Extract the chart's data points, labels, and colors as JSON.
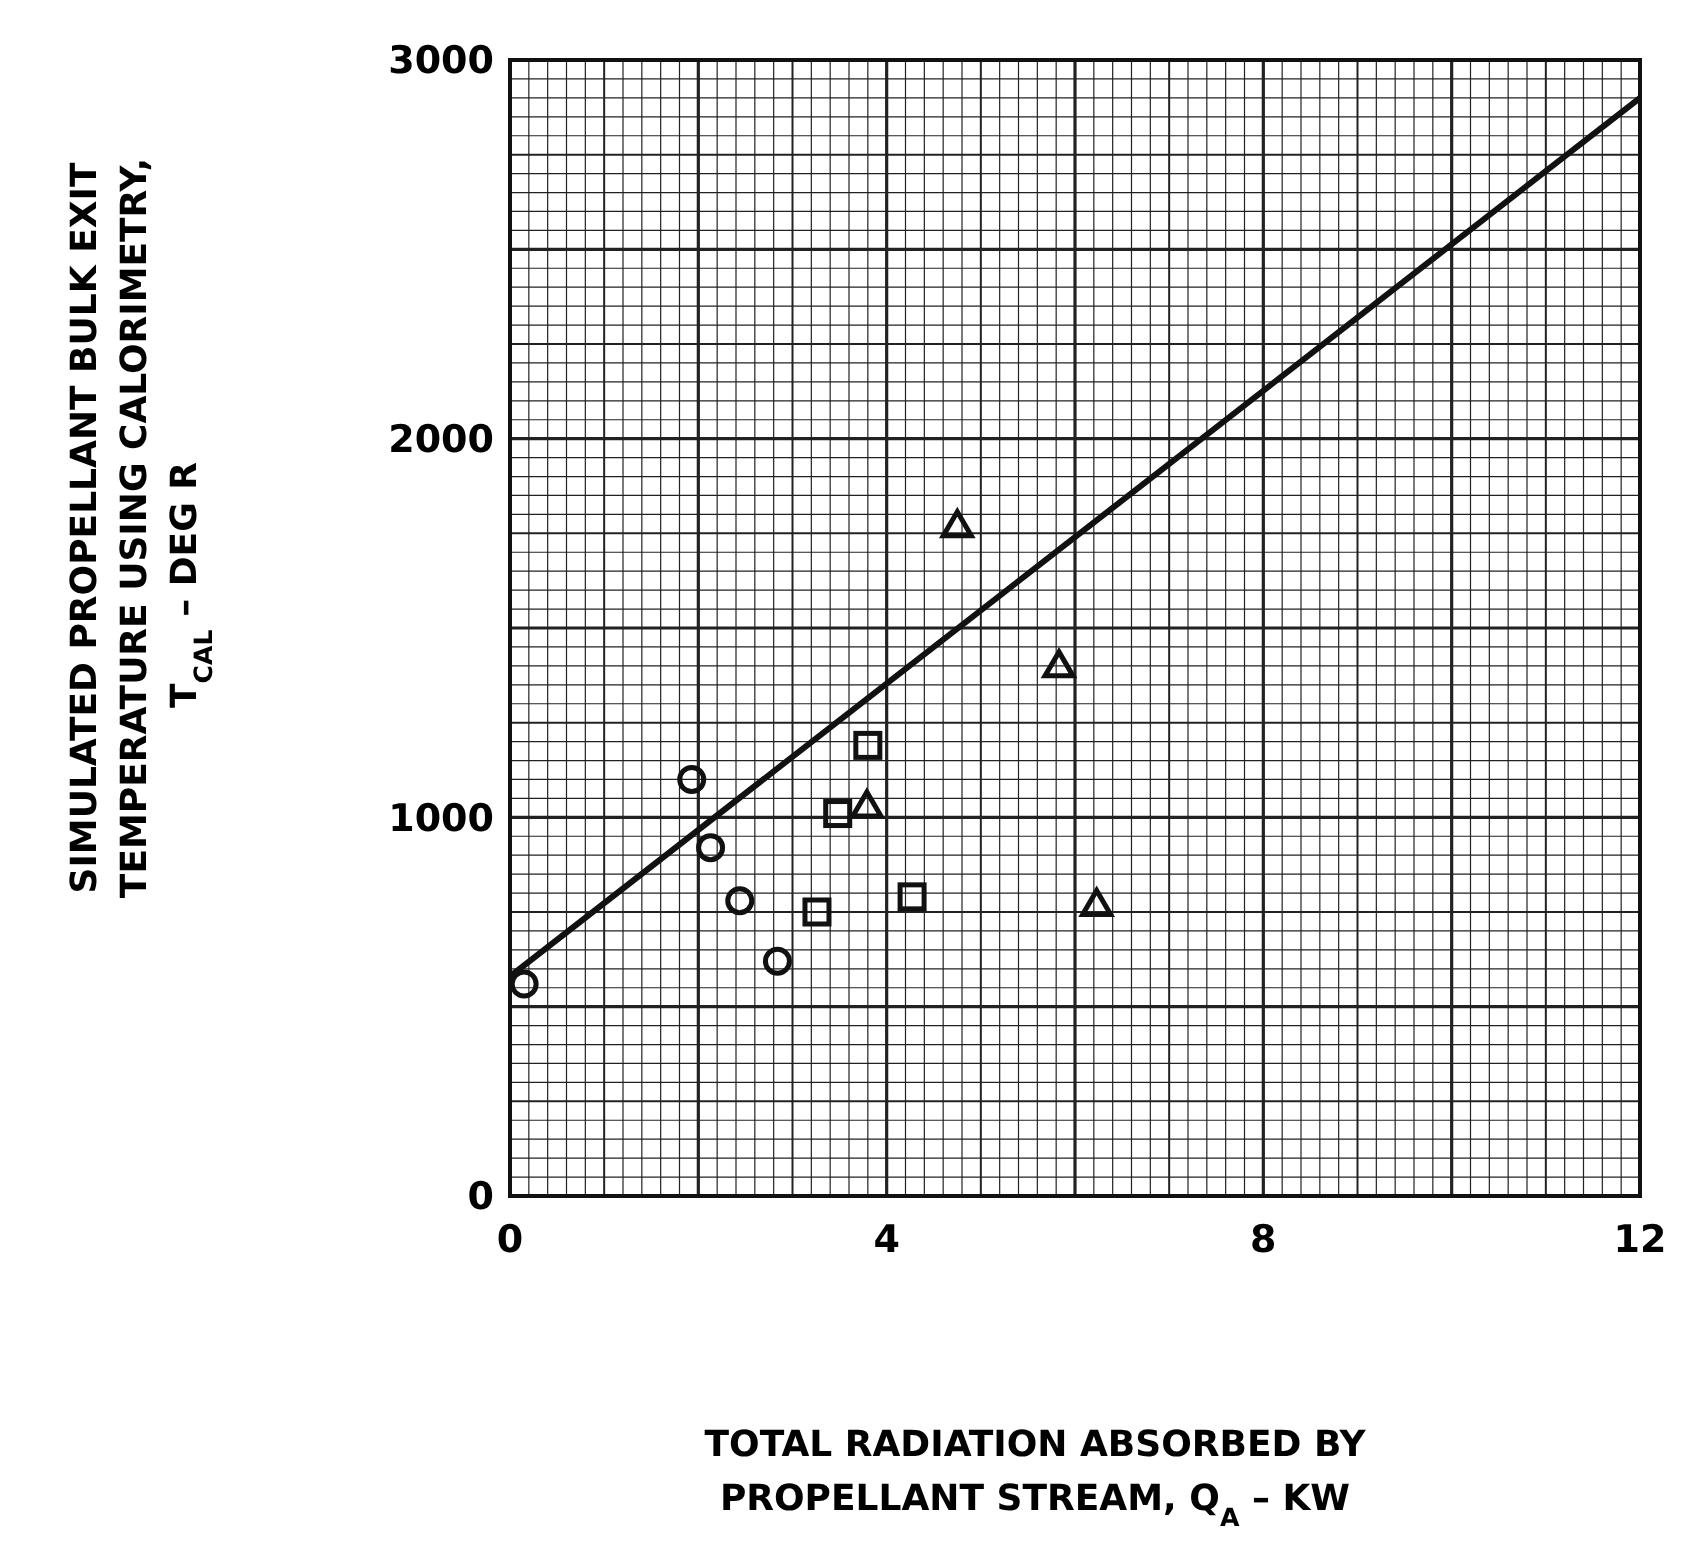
{
  "chart_data": {
    "type": "scatter",
    "xlabel": "TOTAL RADIATION ABSORBED BY\nPROPELLANT STREAM, Q$_{A}$ – KW",
    "ylabel": "SIMULATED PROPELLANT BULK EXIT\nTEMPERATURE USING CALORIMETRY,\nT$_{CAL}$   – DEG R",
    "xlim": [
      0,
      12
    ],
    "ylim": [
      0,
      3000
    ],
    "xticks": [
      0,
      4,
      8,
      12
    ],
    "yticks": [
      0,
      1000,
      2000,
      3000
    ],
    "grid": true,
    "series": [
      {
        "marker": "circle",
        "color": "#111111",
        "x": [
          0.15,
          1.93,
          2.13,
          2.44,
          2.84
        ],
        "values": [
          560,
          1100,
          920,
          780,
          620
        ]
      },
      {
        "marker": "square",
        "color": "#111111",
        "x": [
          3.26,
          3.48,
          3.8,
          4.27
        ],
        "values": [
          750,
          1010,
          1190,
          790
        ]
      },
      {
        "marker": "triangle",
        "color": "#111111",
        "x": [
          3.79,
          4.75,
          5.83,
          6.23
        ],
        "values": [
          1030,
          1770,
          1400,
          770
        ]
      },
      {
        "type": "line",
        "marker": "none",
        "line_style": "solid",
        "color": "#111111",
        "x": [
          0,
          12
        ],
        "values": [
          580,
          2900
        ]
      }
    ]
  }
}
